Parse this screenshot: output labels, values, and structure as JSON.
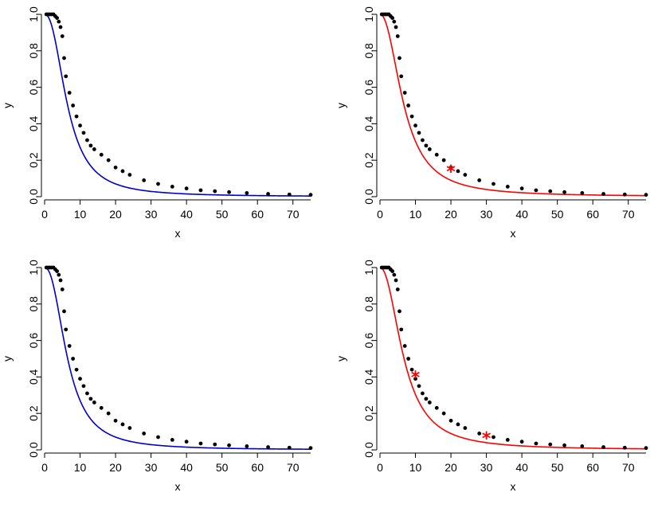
{
  "chart_data": [
    {
      "type": "scatter",
      "title": "",
      "xlabel": "x",
      "ylabel": "y",
      "xlim": [
        0,
        75
      ],
      "ylim": [
        0,
        1
      ],
      "xticks": [
        "0",
        "10",
        "20",
        "30",
        "40",
        "50",
        "60",
        "70"
      ],
      "yticks": [
        "0.0",
        "0.2",
        "0.4",
        "0.6",
        "0.8",
        "1.0"
      ],
      "grid": false,
      "legend": "none",
      "curve": {
        "color": "#0000cc",
        "model": "logistic",
        "midpoint": 6.5,
        "slope": 2.3
      },
      "points": {
        "x": [
          0.5,
          1,
          1.5,
          2,
          2.5,
          3,
          3.5,
          4,
          4.5,
          5,
          5.5,
          6,
          7,
          8,
          9,
          10,
          11,
          12,
          13,
          14,
          16,
          18,
          20,
          22,
          24,
          28,
          32,
          36,
          40,
          44,
          48,
          52,
          57,
          63,
          69,
          75
        ],
        "y": [
          1.0,
          1.0,
          1.0,
          1.0,
          1.0,
          0.99,
          0.98,
          0.96,
          0.93,
          0.88,
          0.76,
          0.66,
          0.57,
          0.5,
          0.44,
          0.39,
          0.35,
          0.31,
          0.28,
          0.26,
          0.23,
          0.2,
          0.16,
          0.14,
          0.12,
          0.09,
          0.07,
          0.055,
          0.045,
          0.035,
          0.03,
          0.025,
          0.02,
          0.015,
          0.012,
          0.01
        ]
      },
      "highlights": []
    },
    {
      "type": "scatter",
      "title": "",
      "xlabel": "x",
      "ylabel": "y",
      "xlim": [
        0,
        75
      ],
      "ylim": [
        0,
        1
      ],
      "xticks": [
        "0",
        "10",
        "20",
        "30",
        "40",
        "50",
        "60",
        "70"
      ],
      "yticks": [
        "0.0",
        "0.2",
        "0.4",
        "0.6",
        "0.8",
        "1.0"
      ],
      "grid": false,
      "legend": "none",
      "curve": {
        "color": "#ff0000",
        "model": "logistic",
        "midpoint": 6.8,
        "slope": 2.15
      },
      "points": {
        "x": [
          0.5,
          1,
          1.5,
          2,
          2.5,
          3,
          3.5,
          4,
          4.5,
          5,
          5.5,
          6,
          7,
          8,
          9,
          10,
          11,
          12,
          13,
          14,
          16,
          18,
          20,
          22,
          24,
          28,
          32,
          36,
          40,
          44,
          48,
          52,
          57,
          63,
          69,
          75
        ],
        "y": [
          1.0,
          1.0,
          1.0,
          1.0,
          1.0,
          0.99,
          0.98,
          0.96,
          0.93,
          0.88,
          0.76,
          0.66,
          0.57,
          0.5,
          0.44,
          0.39,
          0.35,
          0.31,
          0.28,
          0.26,
          0.23,
          0.2,
          0.16,
          0.14,
          0.12,
          0.09,
          0.07,
          0.055,
          0.045,
          0.035,
          0.03,
          0.025,
          0.02,
          0.015,
          0.012,
          0.01
        ]
      },
      "highlights": [
        {
          "x": 20,
          "y": 0.14,
          "color": "#ff0000"
        }
      ]
    },
    {
      "type": "scatter",
      "title": "",
      "xlabel": "x",
      "ylabel": "y",
      "xlim": [
        0,
        75
      ],
      "ylim": [
        0,
        1
      ],
      "xticks": [
        "0",
        "10",
        "20",
        "30",
        "40",
        "50",
        "60",
        "70"
      ],
      "yticks": [
        "0.0",
        "0.2",
        "0.4",
        "0.6",
        "0.8",
        "1.0"
      ],
      "grid": false,
      "legend": "none",
      "curve": {
        "color": "#0000cc",
        "model": "logistic",
        "midpoint": 6.5,
        "slope": 2.3
      },
      "points": {
        "x": [
          0.5,
          1,
          1.5,
          2,
          2.5,
          3,
          3.5,
          4,
          4.5,
          5,
          5.5,
          6,
          7,
          8,
          9,
          10,
          11,
          12,
          13,
          14,
          16,
          18,
          20,
          22,
          24,
          28,
          32,
          36,
          40,
          44,
          48,
          52,
          57,
          63,
          69,
          75
        ],
        "y": [
          1.0,
          1.0,
          1.0,
          1.0,
          1.0,
          0.99,
          0.98,
          0.96,
          0.93,
          0.88,
          0.76,
          0.66,
          0.57,
          0.5,
          0.44,
          0.39,
          0.35,
          0.31,
          0.28,
          0.26,
          0.23,
          0.2,
          0.16,
          0.14,
          0.12,
          0.09,
          0.07,
          0.055,
          0.045,
          0.035,
          0.03,
          0.025,
          0.02,
          0.015,
          0.012,
          0.01
        ]
      },
      "highlights": []
    },
    {
      "type": "scatter",
      "title": "",
      "xlabel": "x",
      "ylabel": "y",
      "xlim": [
        0,
        75
      ],
      "ylim": [
        0,
        1
      ],
      "xticks": [
        "0",
        "10",
        "20",
        "30",
        "40",
        "50",
        "60",
        "70"
      ],
      "yticks": [
        "0.0",
        "0.2",
        "0.4",
        "0.6",
        "0.8",
        "1.0"
      ],
      "grid": false,
      "legend": "none",
      "curve": {
        "color": "#ff0000",
        "model": "logistic",
        "midpoint": 6.8,
        "slope": 2.15
      },
      "points": {
        "x": [
          0.5,
          1,
          1.5,
          2,
          2.5,
          3,
          3.5,
          4,
          4.5,
          5,
          5.5,
          6,
          7,
          8,
          9,
          10,
          11,
          12,
          13,
          14,
          16,
          18,
          20,
          22,
          24,
          28,
          32,
          36,
          40,
          44,
          48,
          52,
          57,
          63,
          69,
          75
        ],
        "y": [
          1.0,
          1.0,
          1.0,
          1.0,
          1.0,
          0.99,
          0.98,
          0.96,
          0.93,
          0.88,
          0.76,
          0.66,
          0.57,
          0.5,
          0.44,
          0.39,
          0.35,
          0.31,
          0.28,
          0.26,
          0.23,
          0.2,
          0.16,
          0.14,
          0.12,
          0.09,
          0.07,
          0.055,
          0.045,
          0.035,
          0.03,
          0.025,
          0.02,
          0.015,
          0.012,
          0.01
        ]
      },
      "highlights": [
        {
          "x": 10,
          "y": 0.4,
          "color": "#ff0000"
        },
        {
          "x": 30,
          "y": 0.065,
          "color": "#ff0000"
        }
      ]
    }
  ]
}
